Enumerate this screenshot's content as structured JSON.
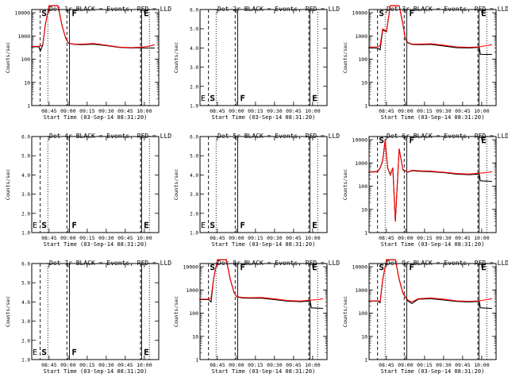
{
  "start_time_label": "Start Time (03-Sep-14 08:31:20)",
  "ylabel": "Counts/sec",
  "xticks": [
    "08:45",
    "09:00",
    "09:15",
    "09:30",
    "09:45",
    "10:00"
  ],
  "marker_letters": [
    "S",
    "F",
    "E"
  ],
  "colors": {
    "events": "#000000",
    "lld": "#ff0000"
  },
  "chart_data": [
    {
      "type": "line",
      "title": "Det 1r BLACK = Events, RED = LLD",
      "scale": "log",
      "ytick_labels": [
        "1",
        "10",
        "100",
        "1000",
        "10000"
      ],
      "series": [
        {
          "name": "BLACK = Events",
          "color": "#000000",
          "x": [
            "08:31",
            "08:37",
            "08:38",
            "08:40",
            "08:42",
            "08:45",
            "08:48",
            "08:52",
            "08:55",
            "08:58",
            "09:00",
            "09:02",
            "09:05",
            "09:10",
            "09:20",
            "09:30",
            "09:40",
            "09:50",
            "09:58",
            "09:59",
            "10:08"
          ],
          "y": [
            340,
            340,
            220,
            400,
            3000,
            20000,
            20000,
            20000,
            3000,
            800,
            500,
            460,
            430,
            420,
            440,
            380,
            320,
            300,
            310,
            300,
            300
          ]
        },
        {
          "name": "RED = LLD",
          "color": "#ff0000",
          "x": [
            "08:31",
            "08:38",
            "08:40",
            "08:42",
            "08:45",
            "08:48",
            "08:52",
            "08:55",
            "08:58",
            "09:00",
            "09:02",
            "09:05",
            "09:10",
            "09:20",
            "09:30",
            "09:40",
            "09:50",
            "09:58",
            "10:04",
            "10:08"
          ],
          "y": [
            350,
            360,
            420,
            3000,
            20000,
            20000,
            20000,
            3100,
            820,
            520,
            470,
            440,
            440,
            470,
            400,
            330,
            310,
            330,
            360,
            420
          ]
        }
      ]
    },
    {
      "type": "line",
      "title": "Det 2r BLACK = Events, RED = LLD",
      "scale": "tiny",
      "ytick_labels": [
        "1.0",
        "2.0",
        "3.0",
        "4.0",
        "5.0",
        "6.0"
      ],
      "series": []
    },
    {
      "type": "line",
      "title": "Det 3r BLACK = Events, RED = LLD",
      "scale": "log",
      "ytick_labels": [
        "1",
        "10",
        "100",
        "1000",
        "10000"
      ],
      "series": [
        {
          "name": "BLACK = Events",
          "color": "#000000",
          "x": [
            "08:31",
            "08:38",
            "08:40",
            "08:42",
            "08:45",
            "08:48",
            "08:52",
            "08:55",
            "08:58",
            "09:00",
            "09:02",
            "09:05",
            "09:10",
            "09:20",
            "09:30",
            "09:40",
            "09:50",
            "09:58",
            "09:59",
            "10:08"
          ],
          "y": [
            300,
            300,
            250,
            1800,
            1500,
            20000,
            20000,
            20000,
            3000,
            700,
            500,
            430,
            420,
            430,
            370,
            310,
            300,
            320,
            160,
            160
          ]
        },
        {
          "name": "RED = LLD",
          "color": "#ff0000",
          "x": [
            "08:31",
            "08:38",
            "08:40",
            "08:42",
            "08:45",
            "08:48",
            "08:52",
            "08:55",
            "08:58",
            "09:00",
            "09:02",
            "09:05",
            "09:10",
            "09:20",
            "09:30",
            "09:40",
            "09:50",
            "09:58",
            "10:04",
            "10:08"
          ],
          "y": [
            330,
            340,
            380,
            2000,
            1600,
            20000,
            20000,
            20000,
            3100,
            720,
            520,
            450,
            440,
            460,
            400,
            340,
            320,
            340,
            380,
            420
          ]
        }
      ]
    },
    {
      "type": "line",
      "title": "Det 4r BLACK = Events, RED = LLD",
      "scale": "tiny",
      "ytick_labels": [
        "1.0",
        "2.0",
        "3.0",
        "4.0",
        "5.0",
        "6.0"
      ],
      "series": []
    },
    {
      "type": "line",
      "title": "Det 5r BLACK = Events, RED = LLD",
      "scale": "tiny",
      "ytick_labels": [
        "1.0",
        "2.0",
        "3.0",
        "4.0",
        "5.0",
        "6.0"
      ],
      "series": []
    },
    {
      "type": "line",
      "title": "Det 6r BLACK = Events, RED = LLD",
      "scale": "log",
      "ytick_labels": [
        "1",
        "10",
        "100",
        "1000",
        "10000"
      ],
      "series": [
        {
          "name": "BLACK = Events",
          "color": "#000000",
          "x": [
            "08:31",
            "08:38",
            "08:40",
            "08:42",
            "08:44",
            "08:45",
            "08:46",
            "08:48",
            "08:50",
            "08:52",
            "08:55",
            "08:58",
            "09:00",
            "09:02",
            "09:05",
            "09:10",
            "09:20",
            "09:30",
            "09:40",
            "09:50",
            "09:58",
            "09:59",
            "10:08"
          ],
          "y": [
            400,
            420,
            600,
            1200,
            10000,
            2000,
            600,
            300,
            600,
            3,
            4000,
            500,
            450,
            400,
            460,
            440,
            420,
            380,
            330,
            310,
            330,
            170,
            160
          ]
        },
        {
          "name": "RED = LLD",
          "color": "#ff0000",
          "x": [
            "08:31",
            "08:38",
            "08:40",
            "08:42",
            "08:44",
            "08:45",
            "08:46",
            "08:48",
            "08:50",
            "08:52",
            "08:55",
            "08:58",
            "09:00",
            "09:02",
            "09:05",
            "09:10",
            "09:20",
            "09:30",
            "09:40",
            "09:50",
            "09:58",
            "10:04",
            "10:08"
          ],
          "y": [
            410,
            430,
            620,
            1300,
            10000,
            2100,
            620,
            320,
            620,
            3,
            4100,
            520,
            460,
            410,
            480,
            460,
            440,
            400,
            350,
            330,
            360,
            380,
            420
          ]
        }
      ]
    },
    {
      "type": "line",
      "title": "Det 7r BLACK = Events, RED = LLD",
      "scale": "tiny",
      "ytick_labels": [
        "1.0",
        "2.0",
        "3.0",
        "4.0",
        "5.0",
        "6.0"
      ],
      "series": []
    },
    {
      "type": "line",
      "title": "Det 8r BLACK = Events, RED = LLD",
      "scale": "log",
      "ytick_labels": [
        "1",
        "10",
        "100",
        "1000",
        "10000"
      ],
      "series": [
        {
          "name": "BLACK = Events",
          "color": "#000000",
          "x": [
            "08:31",
            "08:38",
            "08:40",
            "08:42",
            "08:45",
            "08:48",
            "08:52",
            "08:55",
            "08:58",
            "09:00",
            "09:02",
            "09:05",
            "09:10",
            "09:20",
            "09:30",
            "09:40",
            "09:50",
            "09:58",
            "09:59",
            "10:08"
          ],
          "y": [
            380,
            380,
            300,
            3000,
            20000,
            20000,
            20000,
            3000,
            800,
            520,
            480,
            450,
            440,
            440,
            380,
            330,
            310,
            330,
            170,
            160
          ]
        },
        {
          "name": "RED = LLD",
          "color": "#ff0000",
          "x": [
            "08:31",
            "08:38",
            "08:40",
            "08:42",
            "08:45",
            "08:48",
            "08:52",
            "08:55",
            "08:58",
            "09:00",
            "09:02",
            "09:05",
            "09:10",
            "09:20",
            "09:30",
            "09:40",
            "09:50",
            "09:58",
            "10:04",
            "10:08"
          ],
          "y": [
            400,
            400,
            450,
            3100,
            20000,
            20000,
            20000,
            3100,
            820,
            540,
            500,
            470,
            460,
            470,
            410,
            350,
            330,
            360,
            380,
            420
          ]
        }
      ]
    },
    {
      "type": "line",
      "title": "Det 9r BLACK = Events, RED = LLD",
      "scale": "log",
      "ytick_labels": [
        "1",
        "10",
        "100",
        "1000",
        "10000"
      ],
      "series": [
        {
          "name": "BLACK = Events",
          "color": "#000000",
          "x": [
            "08:31",
            "08:38",
            "08:40",
            "08:42",
            "08:45",
            "08:48",
            "08:52",
            "08:55",
            "08:58",
            "09:00",
            "09:02",
            "09:05",
            "09:10",
            "09:20",
            "09:30",
            "09:40",
            "09:50",
            "09:58",
            "09:59",
            "10:08"
          ],
          "y": [
            330,
            330,
            280,
            2600,
            20000,
            20000,
            20000,
            2800,
            700,
            480,
            330,
            260,
            400,
            420,
            370,
            320,
            300,
            320,
            170,
            160
          ]
        },
        {
          "name": "RED = LLD",
          "color": "#ff0000",
          "x": [
            "08:31",
            "08:38",
            "08:40",
            "08:42",
            "08:45",
            "08:48",
            "08:52",
            "08:55",
            "08:58",
            "09:00",
            "09:02",
            "09:05",
            "09:10",
            "09:20",
            "09:30",
            "09:40",
            "09:50",
            "09:58",
            "10:04",
            "10:08"
          ],
          "y": [
            340,
            340,
            320,
            2700,
            20000,
            20000,
            20000,
            2900,
            720,
            500,
            360,
            300,
            420,
            450,
            400,
            340,
            320,
            340,
            380,
            420
          ]
        }
      ]
    }
  ]
}
